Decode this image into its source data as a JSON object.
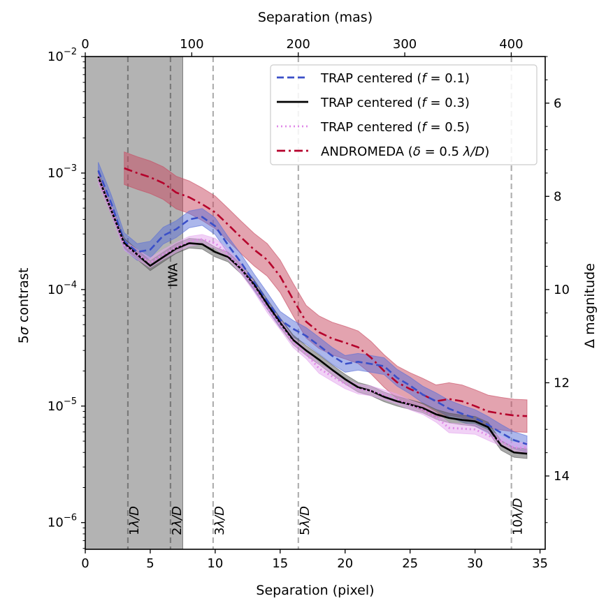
{
  "chart_data": {
    "type": "line",
    "xlabel": "Separation (pixel)",
    "x2label": "Separation (mas)",
    "ylabel": {
      "pre": "5",
      "var": "σ",
      "post": " contrast"
    },
    "y2label": "Δ magnitude",
    "xlim": [
      0,
      35.4
    ],
    "ylim": [
      5.9e-07,
      0.01
    ],
    "yscale": "log",
    "y2lim": [
      5,
      15.5
    ],
    "grid": false,
    "legend_position": "top-right",
    "xticks": [
      "0",
      "5",
      "10",
      "15",
      "20",
      "25",
      "30",
      "35"
    ],
    "xtick_values": [
      0,
      5,
      10,
      15,
      20,
      25,
      30,
      35
    ],
    "x2ticks": [
      "0",
      "100",
      "200",
      "300",
      "400"
    ],
    "x2tick_values": [
      0,
      100,
      200,
      300,
      400
    ],
    "mas_per_pixel": 12.2,
    "yticks": [
      {
        "base": "10",
        "exp": "−6",
        "value": 1e-06
      },
      {
        "base": "10",
        "exp": "−5",
        "value": 1e-05
      },
      {
        "base": "10",
        "exp": "−4",
        "value": 0.0001
      },
      {
        "base": "10",
        "exp": "−3",
        "value": 0.001
      },
      {
        "base": "10",
        "exp": "−2",
        "value": 0.01
      }
    ],
    "y2ticks": [
      "6",
      "8",
      "10",
      "12",
      "14"
    ],
    "y2tick_values": [
      6,
      8,
      10,
      12,
      14
    ],
    "iwa": {
      "label": "IWA",
      "x_max": 7.5,
      "color": "#b3b3b3"
    },
    "vlines": [
      {
        "x": 3.28,
        "num": "1",
        "unit": "λ/D",
        "color": "#7a7a7a"
      },
      {
        "x": 6.56,
        "num": "2",
        "unit": "λ/D",
        "color": "#7a7a7a"
      },
      {
        "x": 9.84,
        "num": "3",
        "unit": "λ/D",
        "color": "#b0b0b0"
      },
      {
        "x": 16.4,
        "num": "5",
        "unit": "λ/D",
        "color": "#b0b0b0"
      },
      {
        "x": 32.8,
        "num": "10",
        "unit": "λ/D",
        "color": "#b0b0b0"
      }
    ],
    "series": [
      {
        "name": "ANDROMEDA (δ = 0.5 λ/D)",
        "label_parts": [
          {
            "t": "ANDROMEDA (",
            "i": false
          },
          {
            "t": "δ",
            "i": true
          },
          {
            "t": " = 0.5 ",
            "i": false
          },
          {
            "t": "λ/D",
            "i": true
          },
          {
            "t": ")",
            "i": false
          }
        ],
        "color": "#b5002b",
        "band_color": "#c8475f",
        "style": "dashdot",
        "band_factor": 1.38,
        "x": [
          3,
          4,
          5,
          6,
          7,
          8,
          9,
          10,
          11,
          12,
          13,
          14,
          15,
          16,
          17,
          18,
          19,
          20,
          21,
          22,
          23,
          24,
          25,
          26,
          27,
          28,
          29,
          30,
          31,
          32,
          33,
          34
        ],
        "y": [
          0.0011,
          0.001,
          0.00092,
          0.00082,
          0.00068,
          0.00062,
          0.00054,
          0.00046,
          0.00036,
          0.00028,
          0.00022,
          0.00018,
          0.00013,
          8.2e-05,
          5.3e-05,
          4.3e-05,
          3.8e-05,
          3.5e-05,
          3.2e-05,
          2.6e-05,
          2e-05,
          1.6e-05,
          1.4e-05,
          1.25e-05,
          1.1e-05,
          1.15e-05,
          1.1e-05,
          1e-05,
          9e-06,
          8.6e-06,
          8.3e-06,
          8.2e-06
        ]
      },
      {
        "name": "TRAP centered (f = 0.1)",
        "label_parts": [
          {
            "t": "TRAP centered (",
            "i": false
          },
          {
            "t": "f",
            "i": true
          },
          {
            "t": " = 0.1)",
            "i": false
          }
        ],
        "color": "#3a4fc8",
        "band_color": "#5a6fd8",
        "style": "dashed",
        "band_factor": 1.18,
        "x": [
          1,
          2,
          3,
          4,
          5,
          6,
          7,
          8,
          9,
          10,
          11,
          12,
          13,
          14,
          15,
          16,
          17,
          18,
          19,
          20,
          21,
          22,
          23,
          24,
          25,
          26,
          27,
          28,
          29,
          30,
          31,
          32,
          33,
          34
        ],
        "y": [
          0.00105,
          0.00055,
          0.00026,
          0.00021,
          0.00022,
          0.00029,
          0.00033,
          0.0004,
          0.00042,
          0.00035,
          0.00024,
          0.00017,
          0.000115,
          8e-05,
          5.5e-05,
          4.6e-05,
          4e-05,
          3.3e-05,
          2.7e-05,
          2.3e-05,
          2.4e-05,
          2.3e-05,
          2.2e-05,
          1.75e-05,
          1.5e-05,
          1.25e-05,
          1.1e-05,
          9.5e-06,
          8.6e-06,
          7.9e-06,
          6.9e-06,
          5.9e-06,
          5.1e-06,
          4.7e-06
        ]
      },
      {
        "name": "TRAP centered (f = 0.3)",
        "label_parts": [
          {
            "t": "TRAP centered (",
            "i": false
          },
          {
            "t": "f",
            "i": true
          },
          {
            "t": " = 0.3)",
            "i": false
          }
        ],
        "color": "#000000",
        "band_color": "#555555",
        "style": "solid",
        "band_factor": 1.1,
        "x": [
          1,
          2,
          3,
          4,
          5,
          6,
          7,
          8,
          9,
          10,
          11,
          12,
          13,
          14,
          15,
          16,
          17,
          18,
          19,
          20,
          21,
          22,
          23,
          24,
          25,
          26,
          27,
          28,
          29,
          30,
          31,
          32,
          33,
          34
        ],
        "y": [
          0.00093,
          0.00048,
          0.00025,
          0.0002,
          0.00016,
          0.00019,
          0.000225,
          0.00025,
          0.000245,
          0.00021,
          0.00019,
          0.00015,
          0.00011,
          7.5e-05,
          5.2e-05,
          3.7e-05,
          3e-05,
          2.5e-05,
          2.05e-05,
          1.7e-05,
          1.45e-05,
          1.35e-05,
          1.2e-05,
          1.1e-05,
          1.03e-05,
          9.6e-06,
          8.5e-06,
          7.9e-06,
          7.6e-06,
          7.4e-06,
          6.6e-06,
          4.6e-06,
          4e-06,
          3.9e-06
        ]
      },
      {
        "name": "TRAP centered (f = 0.5)",
        "label_parts": [
          {
            "t": "TRAP centered (",
            "i": false
          },
          {
            "t": "f",
            "i": true
          },
          {
            "t": " = 0.5)",
            "i": false
          }
        ],
        "color": "#e08ae8",
        "band_color": "#e4a6ee",
        "style": "dotted",
        "band_factor": 1.1,
        "x": [
          1,
          2,
          3,
          4,
          5,
          6,
          7,
          8,
          9,
          10,
          11,
          12,
          13,
          14,
          15,
          16,
          17,
          18,
          19,
          20,
          21,
          22,
          23,
          24,
          25,
          26,
          27,
          28,
          29,
          30,
          31,
          32,
          33,
          34
        ],
        "y": [
          0.0009,
          0.00048,
          0.00024,
          0.0002,
          0.00017,
          0.0002,
          0.00023,
          0.00026,
          0.00027,
          0.00025,
          0.0002,
          0.00015,
          0.000105,
          7e-05,
          5e-05,
          3.5e-05,
          2.8e-05,
          2.1e-05,
          1.8e-05,
          1.55e-05,
          1.4e-05,
          1.35e-05,
          1.25e-05,
          1.15e-05,
          1.02e-05,
          9.3e-06,
          8e-06,
          6.5e-06,
          6.4e-06,
          6.3e-06,
          5.6e-06,
          5e-06,
          4.4e-06,
          4.4e-06
        ]
      }
    ],
    "legend_order": [
      1,
      2,
      3,
      0
    ]
  }
}
